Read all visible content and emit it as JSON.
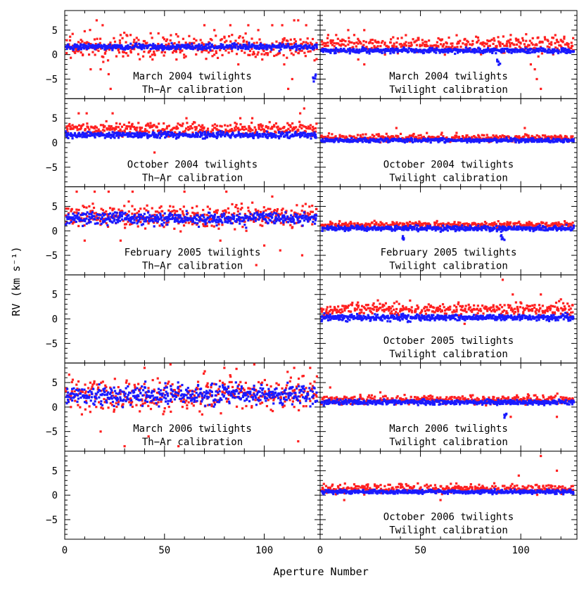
{
  "chart_data": {
    "type": "scatter",
    "title": "",
    "ylabel": "RV (km s⁻¹)",
    "xlabel": "Aperture Number",
    "x_range": [
      0,
      128
    ],
    "ylim": [
      -9,
      9
    ],
    "x_ticks": [
      0,
      50,
      100
    ],
    "y_ticks": [
      5,
      0,
      -5
    ],
    "series_colors": {
      "red": "#ff2020",
      "blue": "#1a1aff"
    },
    "panels": [
      {
        "row": 0,
        "col": 0,
        "title": "March 2004 twilights",
        "subtitle": "Th−Ar calibration",
        "empty": false,
        "blue": {
          "mean": 1.6,
          "spread": 0.6,
          "dropouts": [
            [
              125,
              -5
            ]
          ]
        },
        "red": {
          "mean": 1.5,
          "spread": 2.2,
          "points": [
            [
              16,
              7
            ],
            [
              19,
              6
            ],
            [
              28,
              4
            ],
            [
              31,
              4
            ],
            [
              33,
              4
            ],
            [
              70,
              6
            ],
            [
              75,
              5
            ],
            [
              83,
              6
            ],
            [
              92,
              6
            ],
            [
              97,
              5
            ],
            [
              104,
              6
            ],
            [
              109,
              6
            ],
            [
              115,
              7
            ],
            [
              117,
              7
            ],
            [
              121,
              6
            ],
            [
              13,
              -3
            ],
            [
              18,
              -3
            ],
            [
              22,
              -4
            ],
            [
              23,
              -7
            ],
            [
              44,
              -1
            ],
            [
              56,
              -1
            ],
            [
              87,
              -2
            ],
            [
              99,
              -1
            ],
            [
              110,
              -2
            ],
            [
              112,
              -7
            ],
            [
              114,
              -5
            ]
          ]
        }
      },
      {
        "row": 0,
        "col": 1,
        "title": "March 2004 twilights",
        "subtitle": "Twilight calibration",
        "empty": false,
        "blue": {
          "mean": 0.8,
          "spread": 0.5,
          "dropouts": [
            [
              89,
              -1.5
            ]
          ]
        },
        "red": {
          "mean": 2.0,
          "spread": 1.5,
          "points": [
            [
              4,
              4
            ],
            [
              8,
              4
            ],
            [
              14,
              5
            ],
            [
              17,
              4
            ],
            [
              22,
              5
            ],
            [
              95,
              4
            ],
            [
              98,
              3
            ],
            [
              120,
              3
            ],
            [
              19,
              -1
            ],
            [
              22,
              -2
            ],
            [
              105,
              -2
            ],
            [
              107,
              -3
            ],
            [
              108,
              -5
            ],
            [
              110,
              -7
            ]
          ]
        }
      },
      {
        "row": 1,
        "col": 0,
        "title": "October 2004 twilights",
        "subtitle": "Th−Ar calibration",
        "empty": false,
        "blue": {
          "mean": 1.6,
          "spread": 0.6,
          "dropouts": []
        },
        "red": {
          "mean": 2.8,
          "spread": 1.2,
          "points": [
            [
              7,
              6
            ],
            [
              11,
              6
            ],
            [
              24,
              6
            ],
            [
              61,
              5
            ],
            [
              88,
              5
            ],
            [
              94,
              5
            ],
            [
              118,
              6
            ],
            [
              120,
              7
            ],
            [
              45,
              -2
            ]
          ]
        }
      },
      {
        "row": 1,
        "col": 1,
        "title": "October 2004 twilights",
        "subtitle": "Twilight calibration",
        "empty": false,
        "blue": {
          "mean": 0.5,
          "spread": 0.4,
          "dropouts": []
        },
        "red": {
          "mean": 1.0,
          "spread": 0.7,
          "points": [
            [
              38,
              3
            ],
            [
              68,
              2
            ],
            [
              102,
              3
            ]
          ]
        }
      },
      {
        "row": 2,
        "col": 0,
        "title": "February 2005 twilights",
        "subtitle": "Th−Ar calibration",
        "empty": false,
        "blue": {
          "mean": 2.5,
          "spread": 1.2,
          "dropouts": []
        },
        "red": {
          "mean": 3.0,
          "spread": 2.3,
          "points": [
            [
              6,
              8
            ],
            [
              15,
              8
            ],
            [
              22,
              8
            ],
            [
              34,
              8
            ],
            [
              60,
              8
            ],
            [
              81,
              8
            ],
            [
              104,
              7
            ],
            [
              10,
              -2
            ],
            [
              28,
              -2
            ],
            [
              78,
              -2
            ],
            [
              100,
              -3
            ],
            [
              108,
              -4
            ],
            [
              119,
              -5
            ],
            [
              96,
              -7
            ]
          ]
        }
      },
      {
        "row": 2,
        "col": 1,
        "title": "February 2005 twilights",
        "subtitle": "Twilight calibration",
        "empty": false,
        "blue": {
          "mean": 0.5,
          "spread": 0.5,
          "dropouts": [
            [
              42,
              -1.5
            ],
            [
              91,
              -1.5
            ]
          ]
        },
        "red": {
          "mean": 1.2,
          "spread": 0.6,
          "points": []
        }
      },
      {
        "row": 3,
        "col": 0,
        "title": "",
        "subtitle": "",
        "empty": true
      },
      {
        "row": 3,
        "col": 1,
        "title": "October 2005 twilights",
        "subtitle": "Twilight calibration",
        "empty": false,
        "blue": {
          "mean": 0.3,
          "spread": 0.6,
          "dropouts": []
        },
        "red": {
          "mean": 2.0,
          "spread": 1.2,
          "points": [
            [
              91,
              8
            ],
            [
              96,
              5
            ],
            [
              110,
              5
            ],
            [
              120,
              4
            ],
            [
              72,
              -1
            ]
          ]
        }
      },
      {
        "row": 4,
        "col": 0,
        "title": "March 2006 twilights",
        "subtitle": "Th−Ar calibration",
        "empty": false,
        "blue": {
          "mean": 2.5,
          "spread": 2.0,
          "dropouts": []
        },
        "red": {
          "mean": 2.5,
          "spread": 3.2,
          "points": [
            [
              40,
              8
            ],
            [
              53,
              9
            ],
            [
              80,
              8
            ],
            [
              95,
              9
            ],
            [
              115,
              8
            ],
            [
              123,
              8
            ],
            [
              30,
              -8
            ],
            [
              57,
              -8
            ],
            [
              117,
              -7
            ],
            [
              18,
              -5
            ],
            [
              42,
              -6
            ]
          ]
        }
      },
      {
        "row": 4,
        "col": 1,
        "title": "March 2006 twilights",
        "subtitle": "Twilight calibration",
        "empty": false,
        "blue": {
          "mean": 1.0,
          "spread": 0.5,
          "dropouts": [
            [
              92,
              -1.5
            ]
          ]
        },
        "red": {
          "mean": 1.5,
          "spread": 0.8,
          "points": [
            [
              5,
              4
            ],
            [
              30,
              3
            ],
            [
              95,
              -2
            ],
            [
              118,
              -2
            ]
          ]
        }
      },
      {
        "row": 5,
        "col": 0,
        "title": "",
        "subtitle": "",
        "empty": true
      },
      {
        "row": 5,
        "col": 1,
        "title": "October 2006 twilights",
        "subtitle": "Twilight calibration",
        "empty": false,
        "blue": {
          "mean": 0.7,
          "spread": 0.4,
          "dropouts": []
        },
        "red": {
          "mean": 1.3,
          "spread": 0.9,
          "points": [
            [
              110,
              8
            ],
            [
              118,
              5
            ],
            [
              99,
              4
            ],
            [
              12,
              -1
            ],
            [
              60,
              -1
            ]
          ]
        }
      }
    ]
  }
}
